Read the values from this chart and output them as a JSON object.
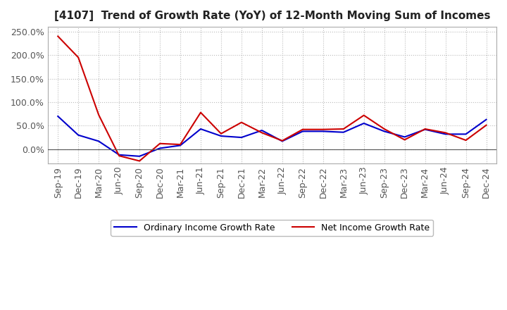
{
  "title": "[4107]  Trend of Growth Rate (YoY) of 12-Month Moving Sum of Incomes",
  "x_labels": [
    "Sep-19",
    "Dec-19",
    "Mar-20",
    "Jun-20",
    "Sep-20",
    "Dec-20",
    "Mar-21",
    "Jun-21",
    "Sep-21",
    "Dec-21",
    "Mar-22",
    "Jun-22",
    "Sep-22",
    "Dec-22",
    "Mar-23",
    "Jun-23",
    "Sep-23",
    "Dec-23",
    "Mar-24",
    "Jun-24",
    "Sep-24",
    "Dec-24"
  ],
  "ordinary_income": [
    0.7,
    0.3,
    0.17,
    -0.12,
    -0.15,
    0.02,
    0.08,
    0.43,
    0.28,
    0.25,
    0.4,
    0.17,
    0.38,
    0.38,
    0.36,
    0.55,
    0.38,
    0.26,
    0.42,
    0.32,
    0.32,
    0.63
  ],
  "net_income": [
    2.4,
    1.95,
    0.73,
    -0.14,
    -0.25,
    0.12,
    0.1,
    0.78,
    0.33,
    0.57,
    0.35,
    0.18,
    0.42,
    0.42,
    0.43,
    0.72,
    0.43,
    0.2,
    0.43,
    0.35,
    0.19,
    0.51
  ],
  "ordinary_color": "#0000cc",
  "net_color": "#cc0000",
  "background_color": "#ffffff",
  "grid_color": "#bbbbbb",
  "tick_color": "#555555",
  "ylim_min": -0.3,
  "ylim_max": 2.6,
  "yticks": [
    0.0,
    0.5,
    1.0,
    1.5,
    2.0,
    2.5
  ],
  "ytick_labels": [
    "0.0%",
    "50.0%",
    "100.0%",
    "150.0%",
    "200.0%",
    "250.0%"
  ],
  "legend_ordinary": "Ordinary Income Growth Rate",
  "legend_net": "Net Income Growth Rate",
  "title_fontsize": 11,
  "tick_fontsize": 9,
  "legend_fontsize": 9
}
